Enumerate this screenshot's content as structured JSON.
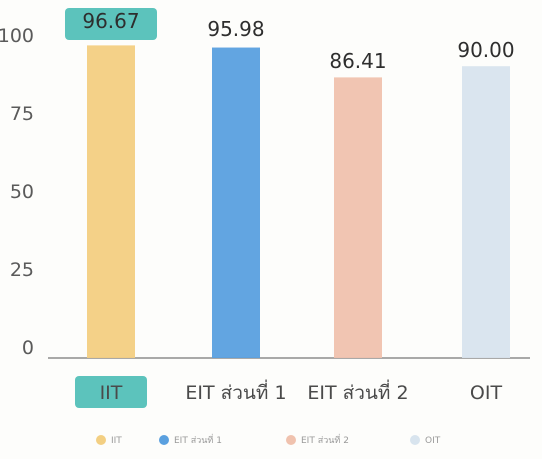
{
  "chart_data": {
    "type": "bar",
    "categories": [
      "IIT",
      "EIT ส่วนที่ 1",
      "EIT ส่วนที่ 2",
      "OIT"
    ],
    "values": [
      96.67,
      95.98,
      86.41,
      90.0
    ],
    "value_labels": [
      "96.67",
      "95.98",
      "86.41",
      "90.00"
    ],
    "y_ticks": [
      "0",
      "25",
      "50",
      "75",
      "100"
    ],
    "y_tick_values": [
      0,
      25,
      50,
      75,
      100
    ],
    "ylim": [
      0,
      100
    ],
    "colors": [
      "#f3cf82",
      "#5aa0df",
      "#f0c2ae",
      "#d8e4ee"
    ],
    "highlight_color": "#3fb8b0",
    "highlighted_index": 0,
    "legend": {
      "position": "bottom",
      "entries": [
        "IIT",
        "EIT ส่วนที่ 1",
        "EIT ส่วนที่ 2",
        "OIT"
      ]
    },
    "grid": false
  }
}
